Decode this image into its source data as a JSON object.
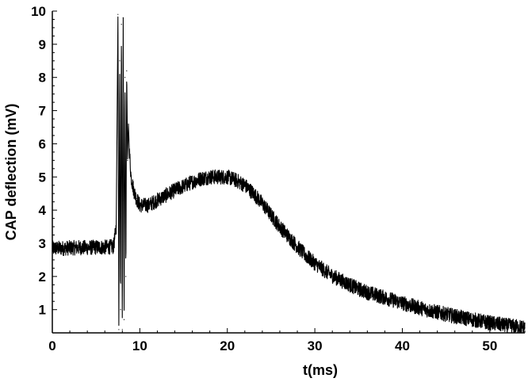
{
  "chart_data": {
    "type": "line",
    "title": "",
    "xlabel": "t(ms)",
    "ylabel": "CAP deflection (mV)",
    "xlim": [
      0,
      54
    ],
    "ylim": [
      0.3,
      10
    ],
    "x_ticks": [
      0,
      10,
      20,
      30,
      40,
      50
    ],
    "y_ticks": [
      1,
      2,
      3,
      4,
      5,
      6,
      7,
      8,
      9,
      10
    ],
    "grid": false,
    "legend": "none",
    "line_color": "#000000",
    "series": [
      {
        "x": [
          0,
          1,
          2,
          3,
          4,
          5,
          6,
          7,
          7.3,
          7.5,
          7.6,
          7.7,
          7.8,
          7.9,
          8.0,
          8.1,
          8.2,
          8.3,
          8.4,
          8.5,
          8.6,
          8.7,
          8.8,
          9.0,
          9.3,
          9.6,
          10,
          11,
          12,
          13,
          14,
          15,
          16,
          17,
          18,
          19,
          20,
          21,
          22,
          23,
          24,
          25,
          26,
          27,
          28,
          29,
          30,
          31,
          32,
          33,
          34,
          35,
          36,
          37,
          38,
          39,
          40,
          41,
          42,
          43,
          44,
          45,
          46,
          47,
          48,
          49,
          50,
          51,
          52,
          53,
          54
        ],
        "y": [
          2.85,
          2.85,
          2.86,
          2.87,
          2.87,
          2.88,
          2.88,
          2.9,
          3.5,
          9.9,
          0.4,
          8.5,
          1.0,
          9.6,
          0.4,
          9.8,
          0.7,
          8.0,
          2.0,
          8.2,
          5.5,
          6.6,
          5.8,
          5.0,
          4.6,
          4.35,
          4.15,
          4.15,
          4.3,
          4.45,
          4.6,
          4.72,
          4.85,
          4.95,
          5.0,
          5.0,
          5.0,
          4.9,
          4.75,
          4.5,
          4.2,
          3.85,
          3.5,
          3.2,
          2.9,
          2.62,
          2.4,
          2.2,
          2.02,
          1.88,
          1.75,
          1.62,
          1.52,
          1.44,
          1.36,
          1.28,
          1.2,
          1.12,
          1.05,
          0.98,
          0.92,
          0.86,
          0.8,
          0.75,
          0.7,
          0.65,
          0.6,
          0.56,
          0.52,
          0.49,
          0.46
        ]
      }
    ]
  }
}
